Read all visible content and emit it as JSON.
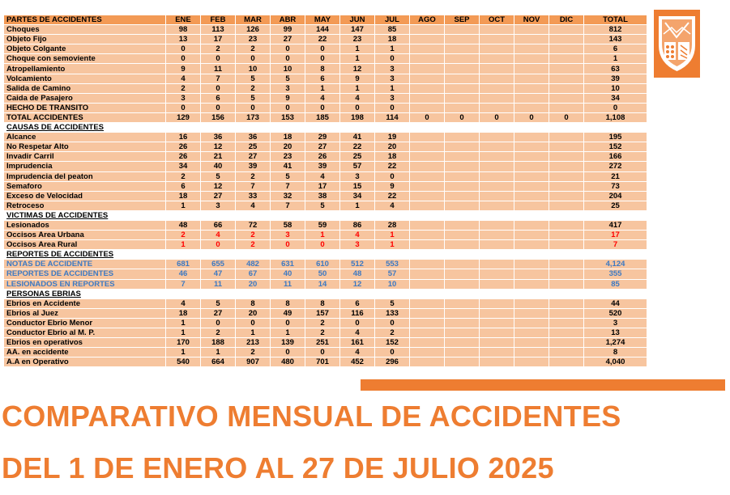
{
  "months": [
    "ENE",
    "FEB",
    "MAR",
    "ABR",
    "MAY",
    "JUN",
    "JUL",
    "AGO",
    "SEP",
    "OCT",
    "NOV",
    "DIC"
  ],
  "table": {
    "header_label": "PARTES DE ACCIDENTES",
    "total_header": "TOTAL",
    "rows": [
      {
        "type": "data",
        "label": "Choques",
        "values": [
          "98",
          "113",
          "126",
          "99",
          "144",
          "147",
          "85",
          "",
          "",
          "",
          "",
          ""
        ],
        "total": "812"
      },
      {
        "type": "data",
        "label": "Objeto Fijo",
        "values": [
          "13",
          "17",
          "23",
          "27",
          "22",
          "23",
          "18",
          "",
          "",
          "",
          "",
          ""
        ],
        "total": "143"
      },
      {
        "type": "data",
        "label": "Objeto Colgante",
        "values": [
          "0",
          "2",
          "2",
          "0",
          "0",
          "1",
          "1",
          "",
          "",
          "",
          "",
          ""
        ],
        "total": "6"
      },
      {
        "type": "data",
        "label": "Choque con semoviente",
        "values": [
          "0",
          "0",
          "0",
          "0",
          "0",
          "1",
          "0",
          "",
          "",
          "",
          "",
          ""
        ],
        "total": "1"
      },
      {
        "type": "data",
        "label": "Atropellamiento",
        "values": [
          "9",
          "11",
          "10",
          "10",
          "8",
          "12",
          "3",
          "",
          "",
          "",
          "",
          ""
        ],
        "total": "63"
      },
      {
        "type": "data",
        "label": "Volcamiento",
        "values": [
          "4",
          "7",
          "5",
          "5",
          "6",
          "9",
          "3",
          "",
          "",
          "",
          "",
          ""
        ],
        "total": "39"
      },
      {
        "type": "data",
        "label": "Salida de Camino",
        "values": [
          "2",
          "0",
          "2",
          "3",
          "1",
          "1",
          "1",
          "",
          "",
          "",
          "",
          ""
        ],
        "total": "10"
      },
      {
        "type": "data",
        "label": "Caida de Pasajero",
        "values": [
          "3",
          "6",
          "5",
          "9",
          "4",
          "4",
          "3",
          "",
          "",
          "",
          "",
          ""
        ],
        "total": "34"
      },
      {
        "type": "data",
        "label": "HECHO DE TRANSITO",
        "values": [
          "0",
          "0",
          "0",
          "0",
          "0",
          "0",
          "0",
          "",
          "",
          "",
          "",
          ""
        ],
        "total": "0"
      },
      {
        "type": "data",
        "label": "TOTAL ACCIDENTES",
        "values": [
          "129",
          "156",
          "173",
          "153",
          "185",
          "198",
          "114",
          "0",
          "0",
          "0",
          "0",
          "0"
        ],
        "total": "1,108"
      },
      {
        "type": "section",
        "label": "CAUSAS DE ACCIDENTES"
      },
      {
        "type": "data",
        "label": "Alcance",
        "values": [
          "16",
          "36",
          "36",
          "18",
          "29",
          "41",
          "19",
          "",
          "",
          "",
          "",
          ""
        ],
        "total": "195"
      },
      {
        "type": "data",
        "label": "No Respetar Alto",
        "values": [
          "26",
          "12",
          "25",
          "20",
          "27",
          "22",
          "20",
          "",
          "",
          "",
          "",
          ""
        ],
        "total": "152"
      },
      {
        "type": "data",
        "label": "Invadir Carril",
        "values": [
          "26",
          "21",
          "27",
          "23",
          "26",
          "25",
          "18",
          "",
          "",
          "",
          "",
          ""
        ],
        "total": "166"
      },
      {
        "type": "data",
        "label": "Imprudencia",
        "values": [
          "34",
          "40",
          "39",
          "41",
          "39",
          "57",
          "22",
          "",
          "",
          "",
          "",
          ""
        ],
        "total": "272"
      },
      {
        "type": "data",
        "label": "Imprudencia del peaton",
        "values": [
          "2",
          "5",
          "2",
          "5",
          "4",
          "3",
          "0",
          "",
          "",
          "",
          "",
          ""
        ],
        "total": "21"
      },
      {
        "type": "data",
        "label": "Semaforo",
        "values": [
          "6",
          "12",
          "7",
          "7",
          "17",
          "15",
          "9",
          "",
          "",
          "",
          "",
          ""
        ],
        "total": "73"
      },
      {
        "type": "data",
        "label": "Exceso de Velocidad",
        "values": [
          "18",
          "27",
          "33",
          "32",
          "38",
          "34",
          "22",
          "",
          "",
          "",
          "",
          ""
        ],
        "total": "204"
      },
      {
        "type": "data",
        "label": "Retroceso",
        "values": [
          "1",
          "3",
          "4",
          "7",
          "5",
          "1",
          "4",
          "",
          "",
          "",
          "",
          ""
        ],
        "total": "25"
      },
      {
        "type": "section",
        "label": "VICTIMAS DE ACCIDENTES"
      },
      {
        "type": "data",
        "label": "Lesionados",
        "values": [
          "48",
          "66",
          "72",
          "58",
          "59",
          "86",
          "28",
          "",
          "",
          "",
          "",
          ""
        ],
        "total": "417"
      },
      {
        "type": "data",
        "label": "Occisos Area Urbana",
        "style": "red",
        "values": [
          "2",
          "4",
          "2",
          "3",
          "1",
          "4",
          "1",
          "",
          "",
          "",
          "",
          ""
        ],
        "total": "17"
      },
      {
        "type": "data",
        "label": "Occisos Area Rural",
        "style": "red",
        "values": [
          "1",
          "0",
          "2",
          "0",
          "0",
          "3",
          "1",
          "",
          "",
          "",
          "",
          ""
        ],
        "total": "7"
      },
      {
        "type": "section",
        "label": "REPORTES DE ACCIDENTES"
      },
      {
        "type": "data",
        "label": "NOTAS DE ACCIDENTE",
        "style": "blue",
        "values": [
          "681",
          "655",
          "482",
          "631",
          "610",
          "512",
          "553",
          "",
          "",
          "",
          "",
          ""
        ],
        "total": "4,124"
      },
      {
        "type": "data",
        "label": "REPORTES DE ACCIDENTES",
        "style": "blue",
        "values": [
          "46",
          "47",
          "67",
          "40",
          "50",
          "48",
          "57",
          "",
          "",
          "",
          "",
          ""
        ],
        "total": "355"
      },
      {
        "type": "data",
        "label": "LESIONADOS EN REPORTES",
        "style": "blue",
        "values": [
          "7",
          "11",
          "20",
          "11",
          "14",
          "12",
          "10",
          "",
          "",
          "",
          "",
          ""
        ],
        "total": "85"
      },
      {
        "type": "section",
        "label": "PERSONAS EBRIAS"
      },
      {
        "type": "data",
        "label": "Ebrios en Accidente",
        "values": [
          "4",
          "5",
          "8",
          "8",
          "8",
          "6",
          "5",
          "",
          "",
          "",
          "",
          ""
        ],
        "total": "44"
      },
      {
        "type": "data",
        "label": "Ebrios al Juez",
        "values": [
          "18",
          "27",
          "20",
          "49",
          "157",
          "116",
          "133",
          "",
          "",
          "",
          "",
          ""
        ],
        "total": "520"
      },
      {
        "type": "data",
        "label": "Conductor Ebrio Menor",
        "values": [
          "1",
          "0",
          "0",
          "0",
          "2",
          "0",
          "0",
          "",
          "",
          "",
          "",
          ""
        ],
        "total": "3"
      },
      {
        "type": "data",
        "label": "Conductor Ebrio al M. P.",
        "values": [
          "1",
          "2",
          "1",
          "1",
          "2",
          "4",
          "2",
          "",
          "",
          "",
          "",
          ""
        ],
        "total": "13"
      },
      {
        "type": "data",
        "label": "Ebrios en operativos",
        "values": [
          "170",
          "188",
          "213",
          "139",
          "251",
          "161",
          "152",
          "",
          "",
          "",
          "",
          ""
        ],
        "total": "1,274"
      },
      {
        "type": "data",
        "label": "AA. en accidente",
        "values": [
          "1",
          "1",
          "2",
          "0",
          "0",
          "4",
          "0",
          "",
          "",
          "",
          "",
          ""
        ],
        "total": "8"
      },
      {
        "type": "data",
        "label": "A.A en Operativo",
        "values": [
          "540",
          "664",
          "907",
          "480",
          "701",
          "452",
          "296",
          "",
          "",
          "",
          "",
          ""
        ],
        "total": "4,040"
      }
    ]
  },
  "caption": {
    "line1": "COMPARATIVO MENSUAL DE ACCIDENTES",
    "line2": "DEL 1 DE ENERO AL 27 DE JULIO 2025"
  },
  "colors": {
    "header_bg": "#f39a55",
    "cell_bg": "#f7c59f",
    "accent": "#ee7d31",
    "red_text": "#ff0000",
    "blue_text": "#3d79c2"
  }
}
